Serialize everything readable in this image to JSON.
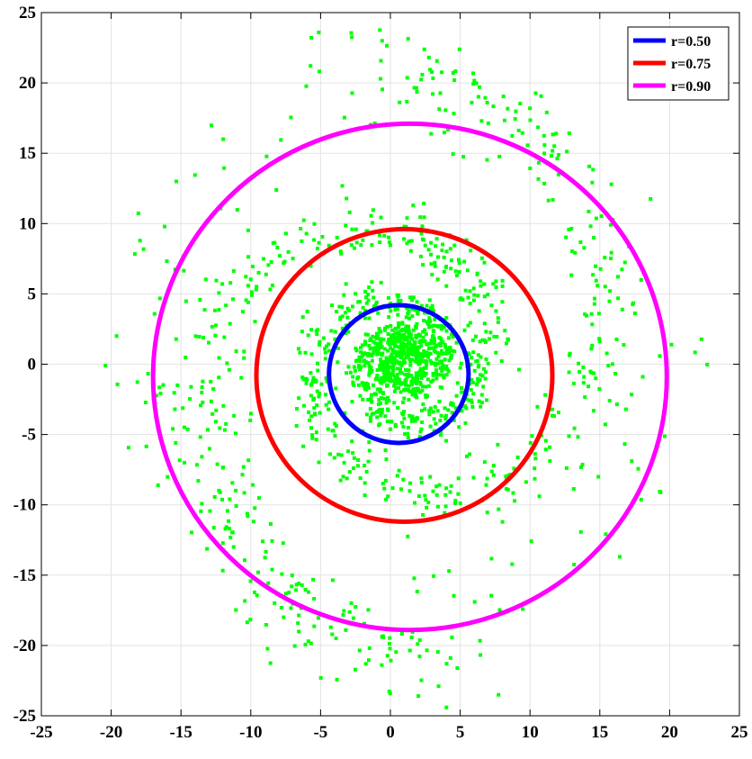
{
  "chart_data": {
    "type": "scatter",
    "title": "",
    "xlabel": "",
    "ylabel": "",
    "xlim": [
      -25,
      25
    ],
    "ylim": [
      -25,
      25
    ],
    "xticks": [
      -25,
      -20,
      -15,
      -10,
      -5,
      0,
      5,
      10,
      15,
      20,
      25
    ],
    "yticks": [
      -25,
      -20,
      -15,
      -10,
      -5,
      0,
      5,
      10,
      15,
      20,
      25
    ],
    "grid": true,
    "legend_position": "top-right",
    "scatter": {
      "color": "#00ff00",
      "description": "two-armed spiral point cloud",
      "arms": [
        {
          "a": 1.2,
          "b": 0.26,
          "theta_start": 0.0,
          "theta_end": 11.2,
          "phase": 0.0
        },
        {
          "a": 1.2,
          "b": 0.26,
          "theta_start": 0.0,
          "theta_end": 11.2,
          "phase": 3.14159
        }
      ],
      "center": [
        0.8,
        0.2
      ],
      "extra_scatter_range": [
        -21,
        21
      ]
    },
    "series": [
      {
        "name": "r=0.50",
        "color": "#0000ff",
        "shape": "circle",
        "center": [
          0.6,
          -0.7
        ],
        "rx": 5.0,
        "ry": 4.9
      },
      {
        "name": "r=0.75",
        "color": "#ff0000",
        "shape": "circle",
        "center": [
          1.0,
          -0.8
        ],
        "rx": 10.6,
        "ry": 10.4
      },
      {
        "name": "r=0.90",
        "color": "#ff00ff",
        "shape": "circle",
        "center": [
          1.4,
          -0.9
        ],
        "rx": 18.4,
        "ry": 18.0
      }
    ]
  }
}
